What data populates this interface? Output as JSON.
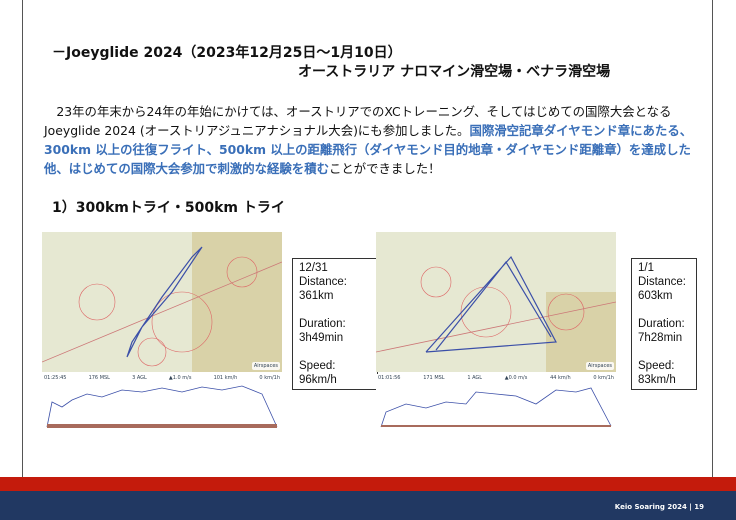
{
  "header": {
    "title": "－Joeyglide 2024（2023年12月25日～1月10日）",
    "subtitle": "オーストラリア ナロマイン滑空場・ベナラ滑空場"
  },
  "intro": {
    "text_plain": "　23年の年末から24年の年始にかけては、オーストリアでのXCトレーニング、そしてはじめての国際大会となるJoeyglide 2024 (オーストリアジュニアナショナル大会)にも参加しました。",
    "text_highlight": "国際滑空記章ダイヤモンド章にあたる、300km 以上の往復フライト、500km 以上の距離飛行（ダイヤモンド目的地章・ダイヤモンド距離章）を達成した他、はじめての国際大会参加で刺激的な経験を積む",
    "text_end": "ことができました！",
    "highlight_color": "#3a6fb8"
  },
  "section": {
    "title": "1）300kmトライ・500km トライ"
  },
  "flights": [
    {
      "chart_header": [
        "01:25:45",
        "176 MSL",
        "3 AGL",
        "▲1.0 m/s",
        "101 km/h",
        "0 km/1h"
      ],
      "airspaces": "Airspaces",
      "date": "12/31",
      "distance_label": "Distance:",
      "distance": "361km",
      "duration_label": "Duration:",
      "duration": "3h49min",
      "speed_label": "Speed:",
      "speed": "96km/h"
    },
    {
      "chart_header": [
        "01:01:56",
        "171 MSL",
        "1 AGL",
        "▲0.0 m/s",
        "44 km/h",
        "0 km/1h"
      ],
      "airspaces": "Airspaces",
      "date": "1/1",
      "distance_label": "Distance:",
      "distance": "603km",
      "duration_label": "Duration:",
      "duration": "7h28min",
      "speed_label": "Speed:",
      "speed": "83km/h"
    }
  ],
  "footer": {
    "text": "Keio Soaring 2024 | 19"
  },
  "colors": {
    "red_band": "#c41b0c",
    "navy_band": "#213862"
  }
}
